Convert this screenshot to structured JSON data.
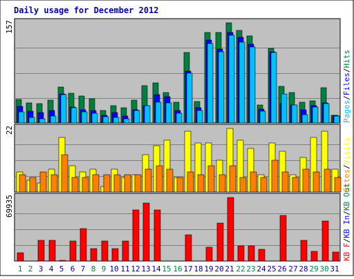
{
  "title": "Daily usage for December 2012",
  "colors": {
    "background": "#ffffff",
    "plot_background": "#c0c0c0",
    "border": "#000000",
    "gridline": "#808080",
    "title": "#0000aa",
    "hits": "#008040",
    "files": "#0000ff",
    "pages": "#00c0ff",
    "visits": "#ffff00",
    "sites": "#ff8000",
    "kbytes": "#ff0000",
    "weekend_day": "#008040",
    "weekday": "#000080"
  },
  "chart_data": [
    {
      "type": "bar",
      "panel": "hits-files-pages",
      "ymax_label": "157",
      "ylim": [
        0,
        157
      ],
      "right_labels": [
        "Pages",
        "Files",
        "Hits"
      ],
      "categories": [
        "1",
        "2",
        "3",
        "4",
        "5",
        "6",
        "7",
        "8",
        "9",
        "10",
        "11",
        "12",
        "13",
        "14",
        "15",
        "16",
        "17",
        "18",
        "19",
        "20",
        "21",
        "22",
        "23",
        "24",
        "25",
        "26",
        "27",
        "28",
        "29",
        "30",
        "31"
      ],
      "weekend_days": [
        "1",
        "2",
        "8",
        "9",
        "15",
        "16",
        "22",
        "23",
        "29",
        "30"
      ],
      "series": [
        {
          "name": "Hits",
          "values": [
            37,
            31,
            30,
            36,
            56,
            47,
            42,
            38,
            19,
            27,
            24,
            36,
            59,
            63,
            48,
            33,
            110,
            34,
            142,
            142,
            157,
            145,
            136,
            28,
            117,
            57,
            48,
            32,
            35,
            55,
            12
          ]
        },
        {
          "name": "Files",
          "values": [
            26,
            18,
            16,
            19,
            45,
            25,
            21,
            19,
            12,
            16,
            11,
            21,
            27,
            44,
            41,
            20,
            81,
            24,
            130,
            116,
            142,
            134,
            123,
            22,
            112,
            30,
            28,
            21,
            27,
            31,
            12
          ]
        },
        {
          "name": "Pages",
          "values": [
            17,
            9,
            7,
            11,
            44,
            24,
            17,
            15,
            10,
            9,
            7,
            19,
            27,
            32,
            31,
            15,
            78,
            20,
            125,
            111,
            138,
            127,
            119,
            18,
            110,
            46,
            28,
            13,
            25,
            30,
            11
          ]
        }
      ]
    },
    {
      "type": "bar",
      "panel": "visits-sites",
      "ymax_label": "22",
      "ylim": [
        0,
        22
      ],
      "right_labels": [
        "Sites",
        "Visits"
      ],
      "categories": [
        "1",
        "2",
        "3",
        "4",
        "5",
        "6",
        "7",
        "8",
        "9",
        "10",
        "11",
        "12",
        "13",
        "14",
        "15",
        "16",
        "17",
        "18",
        "19",
        "20",
        "21",
        "22",
        "23",
        "24",
        "25",
        "26",
        "27",
        "28",
        "29",
        "30",
        "31"
      ],
      "series": [
        {
          "name": "Visits",
          "values": [
            7,
            4,
            3,
            8,
            19,
            9,
            7,
            8,
            2,
            8,
            5,
            6,
            13,
            16,
            18,
            5,
            21,
            17,
            17,
            11,
            22,
            18,
            15,
            6,
            17,
            14,
            6,
            12,
            19,
            21,
            8
          ]
        },
        {
          "name": "Sites",
          "values": [
            6,
            5,
            7,
            6,
            13,
            5,
            5,
            6,
            6,
            6,
            6,
            6,
            8,
            9,
            8,
            5,
            7,
            6,
            9,
            6,
            9,
            5,
            7,
            5,
            11,
            7,
            5,
            8,
            7,
            8,
            5
          ]
        }
      ]
    },
    {
      "type": "bar",
      "panel": "kbytes",
      "ymax_label": "69935",
      "ylim": [
        0,
        69935
      ],
      "right_labels": [
        "KB F",
        "KB In",
        "KB Out"
      ],
      "categories": [
        "1",
        "2",
        "3",
        "4",
        "5",
        "6",
        "7",
        "8",
        "9",
        "10",
        "11",
        "12",
        "13",
        "14",
        "15",
        "16",
        "17",
        "18",
        "19",
        "20",
        "21",
        "22",
        "23",
        "24",
        "25",
        "26",
        "27",
        "28",
        "29",
        "30",
        "31"
      ],
      "series": [
        {
          "name": "KB F",
          "values": [
            9000,
            0,
            23000,
            23000,
            1000,
            22000,
            36000,
            14000,
            22000,
            14000,
            22000,
            56000,
            64000,
            56000,
            0,
            0,
            29000,
            0,
            15000,
            42000,
            70000,
            17000,
            17000,
            13000,
            0,
            50000,
            0,
            23000,
            11000,
            44000,
            10000
          ]
        }
      ]
    }
  ]
}
